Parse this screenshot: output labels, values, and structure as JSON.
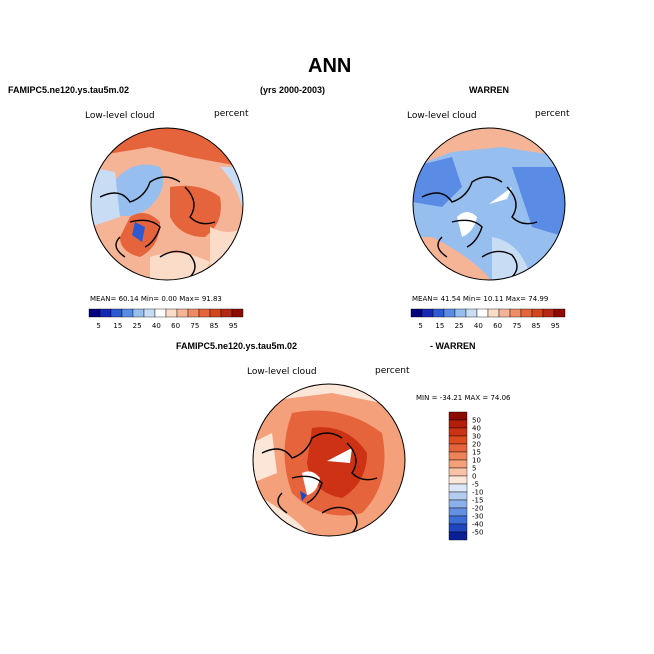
{
  "figure": {
    "title": "ANN",
    "panel1_header": "FAMIPC5.ne120.ys.tau5m.02",
    "period": "(yrs 2000-2003)",
    "panel2_header": "WARREN",
    "panel3_header_left": "FAMIPC5.ne120.ys.tau5m.02",
    "panel3_header_right": "- WARREN"
  },
  "panels": [
    {
      "variable": "Low-level cloud",
      "units": "percent",
      "stats": {
        "mean_label": "MEAN=",
        "mean": "60.14",
        "min_label": "Min=",
        "min": "0.00",
        "max_label": "Max=",
        "max": "91.83"
      }
    },
    {
      "variable": "Low-level cloud",
      "units": "percent",
      "stats": {
        "mean_label": "MEAN=",
        "mean": "41.54",
        "min_label": "Min=",
        "min": "10.11",
        "max_label": "Max=",
        "max": "74.99"
      }
    },
    {
      "variable": "Low-level cloud",
      "units": "percent",
      "stats": {
        "min_label": "MIN =",
        "min": "-34.21",
        "max_label": "MAX =",
        "max": "74.06"
      }
    }
  ],
  "colorbar_abs": {
    "labels": [
      "5",
      "15",
      "25",
      "40",
      "60",
      "75",
      "85",
      "95"
    ],
    "colors": [
      "#00007f",
      "#1428b4",
      "#2d5ad2",
      "#5a8ce6",
      "#96beee",
      "#c8dcf4",
      "#ffffff",
      "#fadcc8",
      "#f6b496",
      "#f08c64",
      "#e6643c",
      "#d2461e",
      "#b42814",
      "#8c0a00"
    ]
  },
  "colorbar_diff": {
    "labels": [
      "50",
      "40",
      "30",
      "20",
      "15",
      "10",
      "5",
      "0",
      "-5",
      "-10",
      "-15",
      "-20",
      "-30",
      "-40",
      "-50"
    ],
    "colors": [
      "#8c0a00",
      "#b41e0a",
      "#cd3214",
      "#dc4b1e",
      "#e6643c",
      "#ee8258",
      "#f4a07a",
      "#f8c3a6",
      "#fce6d8",
      "#dce8f8",
      "#b4ccf0",
      "#8cb0ea",
      "#6490e2",
      "#3c6ed8",
      "#1e46c0",
      "#0a1e96"
    ]
  }
}
